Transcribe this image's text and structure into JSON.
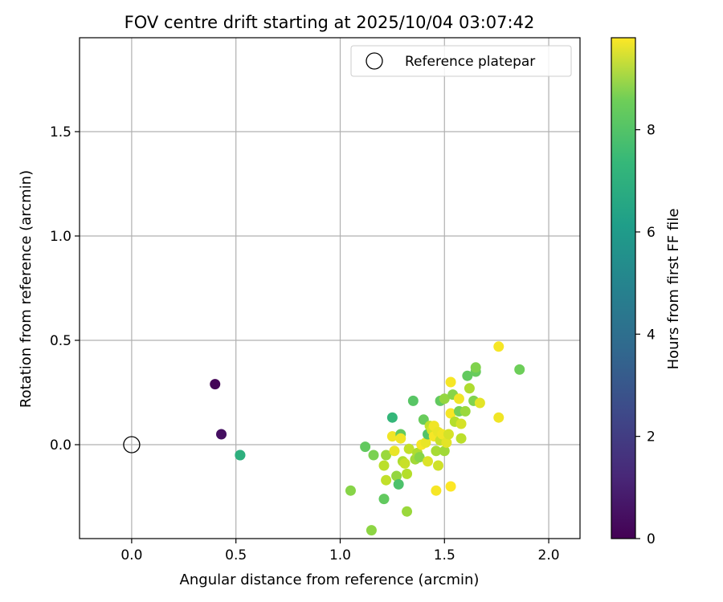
{
  "chart_data": {
    "type": "scatter",
    "title": "FOV centre drift starting at 2025/10/04 03:07:42",
    "xlabel": "Angular distance from reference (arcmin)",
    "ylabel": "Rotation from reference (arcmin)",
    "xlim": [
      -0.25,
      2.15
    ],
    "ylim": [
      -0.45,
      1.95
    ],
    "xticks": [
      0.0,
      0.5,
      1.0,
      1.5,
      2.0
    ],
    "xtick_labels": [
      "0.0",
      "0.5",
      "1.0",
      "1.5",
      "2.0"
    ],
    "yticks": [
      0.0,
      0.5,
      1.0,
      1.5
    ],
    "ytick_labels": [
      "0.0",
      "0.5",
      "1.0",
      "1.5"
    ],
    "grid": true,
    "legend": {
      "position": "top-right",
      "entries": [
        "Reference platepar"
      ]
    },
    "reference_point": {
      "x": 0.0,
      "y": 0.0,
      "label": "Reference platepar"
    },
    "colorbar": {
      "label": "Hours from first FF file",
      "min": 0,
      "max": 9.8,
      "ticks": [
        0,
        2,
        4,
        6,
        8
      ],
      "tick_labels": [
        "0",
        "2",
        "4",
        "6",
        "8"
      ],
      "colormap": "viridis"
    },
    "points": [
      {
        "x": 0.4,
        "y": 0.29,
        "h": 0.1
      },
      {
        "x": 0.43,
        "y": 0.05,
        "h": 0.4
      },
      {
        "x": 0.52,
        "y": -0.05,
        "h": 6.0
      },
      {
        "x": 0.52,
        "y": -0.05,
        "h": 6.2
      },
      {
        "x": 1.05,
        "y": -0.22,
        "h": 8.0
      },
      {
        "x": 1.12,
        "y": -0.01,
        "h": 7.4
      },
      {
        "x": 1.15,
        "y": -0.41,
        "h": 8.1
      },
      {
        "x": 1.16,
        "y": -0.05,
        "h": 7.8
      },
      {
        "x": 1.21,
        "y": -0.26,
        "h": 7.4
      },
      {
        "x": 1.21,
        "y": -0.1,
        "h": 8.8
      },
      {
        "x": 1.22,
        "y": -0.05,
        "h": 8.3
      },
      {
        "x": 1.22,
        "y": -0.17,
        "h": 8.9
      },
      {
        "x": 1.25,
        "y": 0.13,
        "h": 6.5
      },
      {
        "x": 1.25,
        "y": 0.04,
        "h": 9.6
      },
      {
        "x": 1.26,
        "y": -0.03,
        "h": 9.5
      },
      {
        "x": 1.27,
        "y": -0.15,
        "h": 8.2
      },
      {
        "x": 1.28,
        "y": -0.19,
        "h": 7.0
      },
      {
        "x": 1.29,
        "y": 0.05,
        "h": 7.4
      },
      {
        "x": 1.29,
        "y": 0.03,
        "h": 9.6
      },
      {
        "x": 1.3,
        "y": -0.08,
        "h": 8.6
      },
      {
        "x": 1.31,
        "y": -0.09,
        "h": 9.0
      },
      {
        "x": 1.32,
        "y": -0.14,
        "h": 8.7
      },
      {
        "x": 1.32,
        "y": -0.32,
        "h": 8.3
      },
      {
        "x": 1.33,
        "y": -0.02,
        "h": 8.9
      },
      {
        "x": 1.35,
        "y": 0.21,
        "h": 7.2
      },
      {
        "x": 1.36,
        "y": -0.07,
        "h": 8.4
      },
      {
        "x": 1.37,
        "y": -0.04,
        "h": 8.6
      },
      {
        "x": 1.38,
        "y": -0.06,
        "h": 8.0
      },
      {
        "x": 1.39,
        "y": 0.0,
        "h": 9.7
      },
      {
        "x": 1.4,
        "y": 0.12,
        "h": 7.5
      },
      {
        "x": 1.41,
        "y": 0.01,
        "h": 9.5
      },
      {
        "x": 1.42,
        "y": 0.05,
        "h": 7.1
      },
      {
        "x": 1.42,
        "y": -0.08,
        "h": 9.3
      },
      {
        "x": 1.43,
        "y": 0.09,
        "h": 8.9
      },
      {
        "x": 1.44,
        "y": 0.07,
        "h": 9.2
      },
      {
        "x": 1.45,
        "y": 0.09,
        "h": 9.6
      },
      {
        "x": 1.45,
        "y": 0.04,
        "h": 9.7
      },
      {
        "x": 1.46,
        "y": -0.22,
        "h": 9.7
      },
      {
        "x": 1.46,
        "y": -0.03,
        "h": 8.5
      },
      {
        "x": 1.47,
        "y": 0.06,
        "h": 9.5
      },
      {
        "x": 1.47,
        "y": -0.1,
        "h": 9.1
      },
      {
        "x": 1.48,
        "y": 0.02,
        "h": 9.0
      },
      {
        "x": 1.48,
        "y": 0.21,
        "h": 7.4
      },
      {
        "x": 1.49,
        "y": 0.05,
        "h": 9.6
      },
      {
        "x": 1.5,
        "y": -0.03,
        "h": 8.4
      },
      {
        "x": 1.5,
        "y": 0.22,
        "h": 8.2
      },
      {
        "x": 1.51,
        "y": 0.01,
        "h": 9.4
      },
      {
        "x": 1.52,
        "y": 0.05,
        "h": 9.2
      },
      {
        "x": 1.53,
        "y": -0.2,
        "h": 9.8
      },
      {
        "x": 1.53,
        "y": 0.3,
        "h": 9.7
      },
      {
        "x": 1.53,
        "y": 0.15,
        "h": 9.7
      },
      {
        "x": 1.54,
        "y": 0.24,
        "h": 8.0
      },
      {
        "x": 1.55,
        "y": 0.11,
        "h": 8.7
      },
      {
        "x": 1.57,
        "y": 0.22,
        "h": 9.6
      },
      {
        "x": 1.57,
        "y": 0.16,
        "h": 7.7
      },
      {
        "x": 1.58,
        "y": 0.1,
        "h": 9.2
      },
      {
        "x": 1.58,
        "y": 0.03,
        "h": 8.8
      },
      {
        "x": 1.6,
        "y": 0.16,
        "h": 8.3
      },
      {
        "x": 1.61,
        "y": 0.33,
        "h": 7.4
      },
      {
        "x": 1.62,
        "y": 0.27,
        "h": 8.6
      },
      {
        "x": 1.64,
        "y": 0.21,
        "h": 7.9
      },
      {
        "x": 1.65,
        "y": 0.35,
        "h": 7.5
      },
      {
        "x": 1.65,
        "y": 0.37,
        "h": 7.9
      },
      {
        "x": 1.67,
        "y": 0.2,
        "h": 9.4
      },
      {
        "x": 1.76,
        "y": 0.47,
        "h": 9.7
      },
      {
        "x": 1.76,
        "y": 0.13,
        "h": 9.6
      },
      {
        "x": 1.86,
        "y": 0.36,
        "h": 7.6
      }
    ]
  }
}
